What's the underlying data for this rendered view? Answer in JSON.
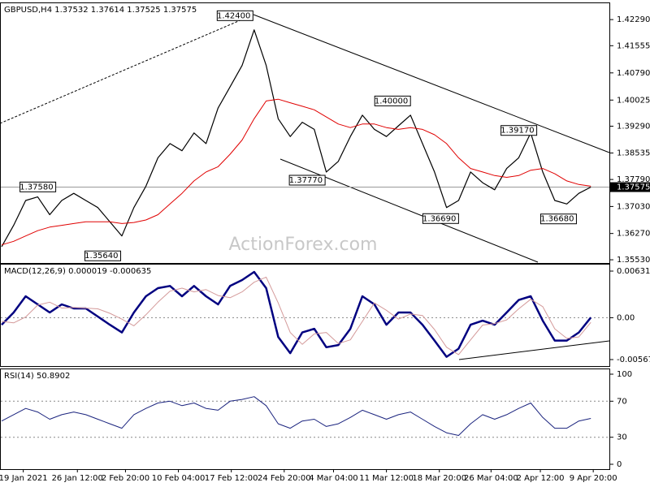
{
  "chart_data": [
    {
      "type": "line",
      "title": "GBPUSD,H4  1.37532 1.37614 1.37525 1.37575",
      "xlim": [
        0,
        50
      ],
      "ylim": [
        1.3544,
        1.4275
      ],
      "yticks": [
        {
          "value": 1.4229,
          "label": "1.42290"
        },
        {
          "value": 1.41555,
          "label": "1.41555"
        },
        {
          "value": 1.4079,
          "label": "1.40790"
        },
        {
          "value": 1.40025,
          "label": "1.40025"
        },
        {
          "value": 1.3929,
          "label": "1.39290"
        },
        {
          "value": 1.38535,
          "label": "1.38535"
        },
        {
          "value": 1.3779,
          "label": "1.37790"
        },
        {
          "value": 1.3703,
          "label": "1.37030"
        },
        {
          "value": 1.3627,
          "label": "1.36270"
        },
        {
          "value": 1.3553,
          "label": "1.35530"
        }
      ],
      "last_price": {
        "value": 1.37575,
        "label": "1.37575"
      },
      "watermark": "ActionForex.com",
      "series": [
        {
          "name": "Close",
          "color": "#000000",
          "width": 1.2,
          "values": [
            1.359,
            1.365,
            1.372,
            1.373,
            1.368,
            1.372,
            1.374,
            1.372,
            1.37,
            1.366,
            1.362,
            1.37,
            1.376,
            1.384,
            1.388,
            1.386,
            1.391,
            1.388,
            1.398,
            1.404,
            1.41,
            1.42,
            1.41,
            1.395,
            1.39,
            1.394,
            1.392,
            1.38,
            1.383,
            1.39,
            1.396,
            1.392,
            1.39,
            1.393,
            1.396,
            1.388,
            1.38,
            1.37,
            1.372,
            1.38,
            1.377,
            1.375,
            1.381,
            1.384,
            1.391,
            1.38,
            1.372,
            1.371,
            1.374,
            1.37575
          ]
        },
        {
          "name": "MA",
          "color": "#e00000",
          "width": 1,
          "values": [
            1.3595,
            1.3605,
            1.362,
            1.3635,
            1.3645,
            1.365,
            1.3655,
            1.366,
            1.366,
            1.366,
            1.3655,
            1.3658,
            1.3665,
            1.368,
            1.371,
            1.374,
            1.3775,
            1.38,
            1.3815,
            1.385,
            1.389,
            1.395,
            1.4,
            1.4005,
            1.3995,
            1.3985,
            1.3975,
            1.3955,
            1.3935,
            1.3925,
            1.3935,
            1.3935,
            1.3925,
            1.392,
            1.3925,
            1.392,
            1.3905,
            1.388,
            1.384,
            1.381,
            1.38,
            1.379,
            1.3785,
            1.379,
            1.3805,
            1.381,
            1.3795,
            1.3775,
            1.3765,
            1.376
          ]
        }
      ],
      "annotations": [
        {
          "x": 20.9,
          "value": 1.424,
          "label": "1.42400"
        },
        {
          "x": 4.5,
          "value": 1.3758,
          "label": "1.37580"
        },
        {
          "x": 9.9,
          "value": 1.3564,
          "label": "1.35640"
        },
        {
          "x": 26.9,
          "value": 1.3777,
          "label": "1.37770"
        },
        {
          "x": 34,
          "value": 1.4,
          "label": "1.40000"
        },
        {
          "x": 38,
          "value": 1.3669,
          "label": "1.36690"
        },
        {
          "x": 44.5,
          "value": 1.3917,
          "label": "1.39170"
        },
        {
          "x": 47.8,
          "value": 1.3668,
          "label": "1.36680"
        }
      ]
    },
    {
      "type": "line",
      "title": "MACD(12,26,9) 0.000019 -0.000635",
      "xlim": [
        0,
        50
      ],
      "ylim": [
        -0.00655,
        0.00719
      ],
      "yticks": [
        {
          "value": 0.00631,
          "label": "0.00631"
        },
        {
          "value": 0,
          "label": "0.00"
        },
        {
          "value": -0.005671,
          "label": "-0.005671"
        }
      ],
      "reference_lines": [
        0
      ],
      "series": [
        {
          "name": "MACD",
          "color": "#000080",
          "width": 2.5,
          "values": [
            -0.00095,
            0.0007,
            0.0029,
            0.0018,
            0.0007,
            0.0018,
            0.00125,
            0.00125,
            0.00015,
            -0.00095,
            -0.002,
            0.0007,
            0.0029,
            0.004,
            0.0043,
            0.0029,
            0.0043,
            0.0029,
            0.0018,
            0.0043,
            0.0051,
            0.0062,
            0.004,
            -0.0026,
            -0.0048,
            -0.002,
            -0.0015,
            -0.004,
            -0.0037,
            -0.0015,
            0.0029,
            0.0018,
            -0.00095,
            0.0007,
            0.0007,
            -0.00095,
            -0.0031,
            -0.0053,
            -0.0042,
            -0.00095,
            -0.0004,
            -0.00095,
            0.0007,
            0.0024,
            0.0029,
            -0.0004,
            -0.0031,
            -0.0031,
            -0.002,
            1.9e-05
          ]
        },
        {
          "name": "Signal",
          "color": "#d49a9a",
          "width": 1,
          "values": [
            -0.0005,
            -0.0007,
            0.0001,
            0.0017,
            0.0021,
            0.0013,
            0.0014,
            0.0013,
            0.0012,
            0.0006,
            -0.0002,
            -0.0011,
            0.0004,
            0.0021,
            0.0036,
            0.004,
            0.0035,
            0.0038,
            0.003,
            0.0027,
            0.0035,
            0.0048,
            0.0055,
            0.002,
            -0.002,
            -0.0036,
            -0.0022,
            -0.002,
            -0.0035,
            -0.003,
            -0.0005,
            0.002,
            0.001,
            -0.0002,
            0.0005,
            0.0003,
            -0.0016,
            -0.004,
            -0.005,
            -0.003,
            -0.001,
            -0.0008,
            -0.0003,
            0.0012,
            0.0025,
            0.0015,
            -0.0015,
            -0.0028,
            -0.0026,
            -0.000635
          ]
        }
      ]
    },
    {
      "type": "line",
      "title": "RSI(14) 50.8902",
      "xlim": [
        0,
        50
      ],
      "ylim": [
        -5.4,
        105.4
      ],
      "yticks": [
        100,
        70,
        30,
        0
      ],
      "reference_lines": [
        70,
        30
      ],
      "xticks": [
        {
          "value": 1.8,
          "label": "19 Jan 2021"
        },
        {
          "value": 6.3,
          "label": "26 Jan 12:00"
        },
        {
          "value": 10.3,
          "label": "2 Feb 20:00"
        },
        {
          "value": 14.7,
          "label": "10 Feb 04:00"
        },
        {
          "value": 19.1,
          "label": "17 Feb 12:00"
        },
        {
          "value": 23.5,
          "label": "24 Feb 20:00"
        },
        {
          "value": 27.6,
          "label": "4 Mar 04:00"
        },
        {
          "value": 32,
          "label": "11 Mar 12:00"
        },
        {
          "value": 36.4,
          "label": "18 Mar 20:00"
        },
        {
          "value": 40.7,
          "label": "26 Mar 04:00"
        },
        {
          "value": 44.8,
          "label": "2 Apr 12:00"
        },
        {
          "value": 49.2,
          "label": "9 Apr 20:00"
        }
      ],
      "series": [
        {
          "name": "RSI",
          "color": "#1a237e",
          "width": 1,
          "values": [
            48,
            55,
            62,
            58,
            50,
            55,
            58,
            55,
            50,
            45,
            40,
            55,
            62,
            68,
            70,
            65,
            68,
            62,
            60,
            70,
            72,
            75,
            65,
            45,
            40,
            48,
            50,
            42,
            45,
            52,
            60,
            55,
            50,
            55,
            58,
            50,
            42,
            35,
            32,
            45,
            55,
            50,
            55,
            62,
            68,
            52,
            40,
            40,
            48,
            50.8902
          ]
        }
      ]
    }
  ]
}
